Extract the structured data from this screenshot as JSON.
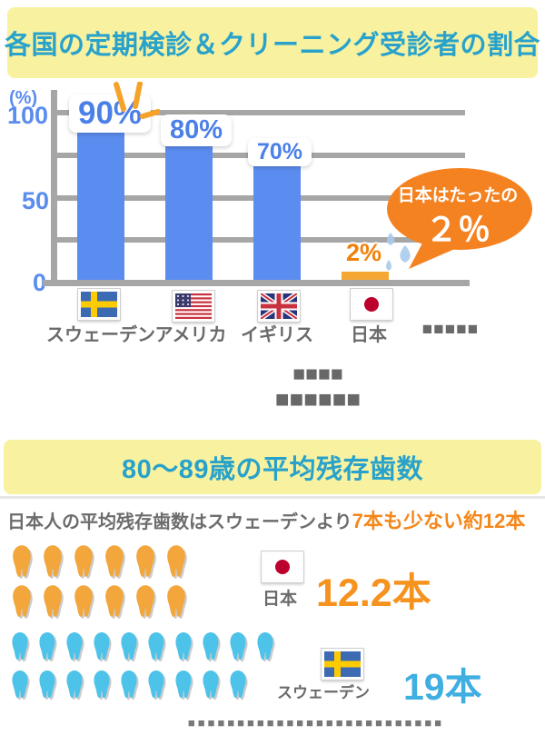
{
  "section1": {
    "title": "各国の定期検診＆クリーニング受診者の割合",
    "caption_line1": "■■■■",
    "caption_line2": "■■■■■■"
  },
  "chart_data": [
    {
      "type": "bar",
      "title": "各国の定期検診＆クリーニング受診者の割合",
      "categories": [
        "スウェーデン",
        "アメリカ",
        "イギリス",
        "日本"
      ],
      "values": [
        90,
        80,
        70,
        2
      ],
      "bar_labels": [
        "90%",
        "80%",
        "70%",
        "2%"
      ],
      "extra_axis_label": "■■■■■",
      "ylabel": "(%)",
      "ytick_labels": [
        "100",
        "50",
        "0"
      ],
      "ylim": [
        0,
        100
      ],
      "grid": true,
      "bar_colors": [
        "#5B8DF0",
        "#5B8DF0",
        "#5B8DF0",
        "#F5A733"
      ],
      "accent_color": "#F58220",
      "annotation_line1": "日本はたったの",
      "annotation_line2": "２％",
      "flags": [
        "sweden",
        "usa",
        "uk",
        "japan"
      ]
    },
    {
      "type": "bar",
      "style": "pictograph-teeth",
      "title": "80〜89歳の平均残存歯数",
      "categories": [
        "日本",
        "スウェーデン"
      ],
      "values": [
        12.2,
        19
      ],
      "value_labels": [
        "12.2本",
        "19本"
      ],
      "tooth_counts": [
        [
          6,
          6
        ],
        [
          10,
          9
        ]
      ],
      "colors": [
        "#F2A63B",
        "#4EC3EA"
      ],
      "value_colors": [
        "#F6921E",
        "#3FAEE0"
      ],
      "flags": [
        "japan",
        "sweden"
      ]
    }
  ],
  "section2": {
    "header": "80〜89歳の平均残存歯数",
    "lead_gray": "日本人の平均残存歯数はスウェーデンより",
    "lead_orange": "7本も少ない約12本",
    "footnote": "■■■■■■■■■■■■■■■■■■■■■■■■■■"
  }
}
